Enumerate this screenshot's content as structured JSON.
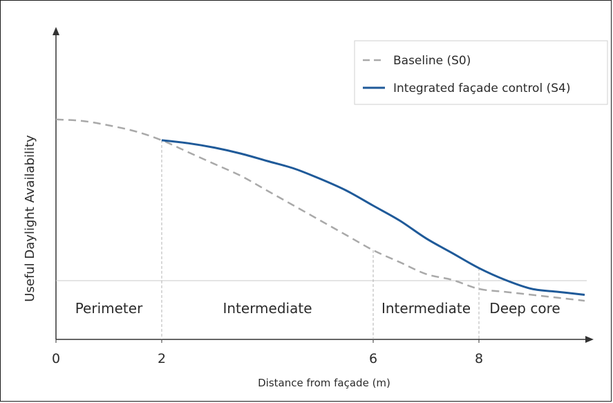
{
  "chart_data": {
    "type": "line",
    "title": "",
    "xlabel": "Distance from façade (m)",
    "ylabel": "Useful Daylight Availability",
    "xlim": [
      0,
      10
    ],
    "ylim": [
      0,
      1
    ],
    "x_ticks": [
      "0",
      "2",
      "6",
      "8"
    ],
    "grid": false,
    "legend_position": "top-right",
    "zones": [
      "Perimeter",
      "Intermediate",
      "Intermediate",
      "Deep core"
    ],
    "series": [
      {
        "name": "Baseline (S0)",
        "style": "dashed",
        "color": "#a9a9a9",
        "x": [
          0,
          0.5,
          1,
          1.5,
          2,
          2.5,
          3,
          3.5,
          4,
          4.5,
          5,
          5.5,
          6,
          6.5,
          7,
          7.5,
          8,
          8.5,
          9,
          9.5,
          10
        ],
        "y": [
          0.74,
          0.735,
          0.72,
          0.7,
          0.67,
          0.63,
          0.59,
          0.55,
          0.5,
          0.45,
          0.4,
          0.35,
          0.3,
          0.26,
          0.22,
          0.2,
          0.17,
          0.16,
          0.15,
          0.14,
          0.13
        ]
      },
      {
        "name": "Integrated façade control (S4)",
        "style": "solid",
        "color": "#1f5a99",
        "x": [
          2,
          2.5,
          3,
          3.5,
          4,
          4.5,
          5,
          5.5,
          6,
          6.5,
          7,
          7.5,
          8,
          8.5,
          9,
          9.5,
          10
        ],
        "y": [
          0.67,
          0.66,
          0.645,
          0.625,
          0.6,
          0.575,
          0.54,
          0.5,
          0.45,
          0.4,
          0.34,
          0.29,
          0.24,
          0.2,
          0.17,
          0.16,
          0.15
        ]
      }
    ]
  },
  "colors": {
    "axis": "#333333",
    "baseline": "#a9a9a9",
    "integrated": "#1f5a99",
    "guide": "#b0b0b0"
  }
}
